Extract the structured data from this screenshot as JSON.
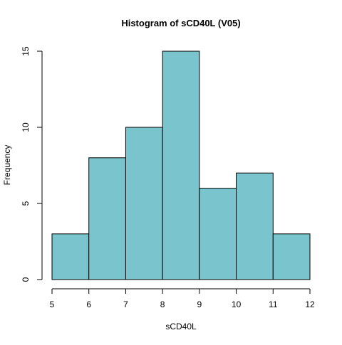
{
  "chart_data": {
    "type": "bar",
    "subtype": "histogram",
    "title": "Histogram of sCD40L (V05)",
    "xlabel": "sCD40L",
    "ylabel": "Frequency",
    "bins": [
      {
        "from": 5,
        "to": 6,
        "count": 3
      },
      {
        "from": 6,
        "to": 7,
        "count": 8
      },
      {
        "from": 7,
        "to": 8,
        "count": 10
      },
      {
        "from": 8,
        "to": 9,
        "count": 15
      },
      {
        "from": 9,
        "to": 10,
        "count": 6
      },
      {
        "from": 10,
        "to": 11,
        "count": 7
      },
      {
        "from": 11,
        "to": 12,
        "count": 3
      }
    ],
    "xlim": [
      5,
      12
    ],
    "ylim": [
      0,
      15
    ],
    "x_ticks": [
      "5",
      "6",
      "7",
      "8",
      "9",
      "10",
      "11",
      "12"
    ],
    "y_ticks": [
      "0",
      "5",
      "10",
      "15"
    ],
    "grid": false,
    "legend": "none",
    "colors": {
      "bar_fill": "#7ac5cd",
      "bar_stroke": "#000000",
      "axis": "#000000"
    }
  }
}
